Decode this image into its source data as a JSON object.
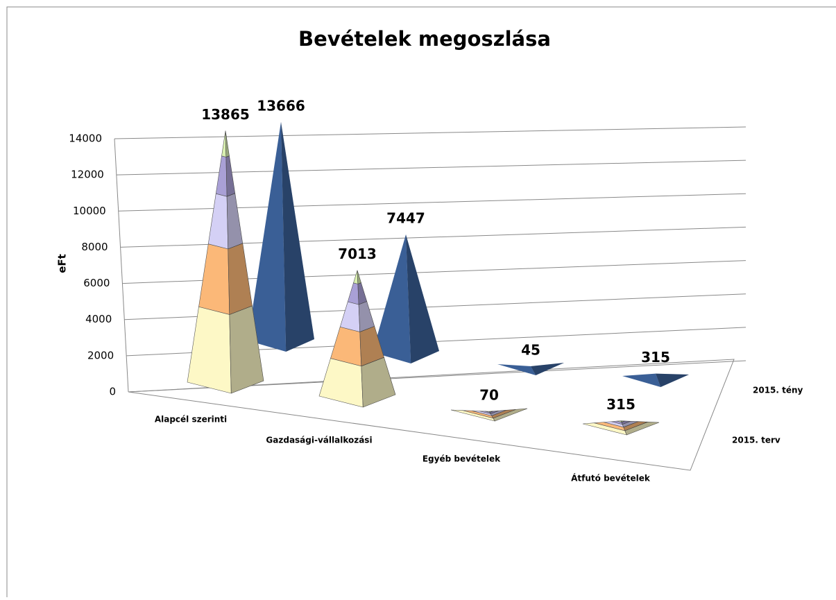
{
  "chart_data": {
    "type": "pyramid3d",
    "title": "Bevételek megoszlása",
    "ylabel": "eFt",
    "categories": [
      "Alapcél szerinti",
      "Gazdasági-vállalkozási",
      "Egyéb bevételek",
      "Átfutó bevételek"
    ],
    "series": [
      {
        "name": "2015. terv",
        "color": "#fdf8c6",
        "colors": [
          "#fdf8c6",
          "#fbb878",
          "#d4d0f5",
          "#a9a0d6",
          "#d9f0b0"
        ],
        "values": [
          13865,
          7013,
          70,
          315
        ]
      },
      {
        "name": "2015. tény",
        "color": "#3a5f96",
        "values": [
          13666,
          7447,
          45,
          315
        ]
      }
    ],
    "ylim": [
      0,
      14000
    ],
    "yticks": [
      0,
      2000,
      4000,
      6000,
      8000,
      10000,
      12000,
      14000
    ],
    "grid": true
  }
}
